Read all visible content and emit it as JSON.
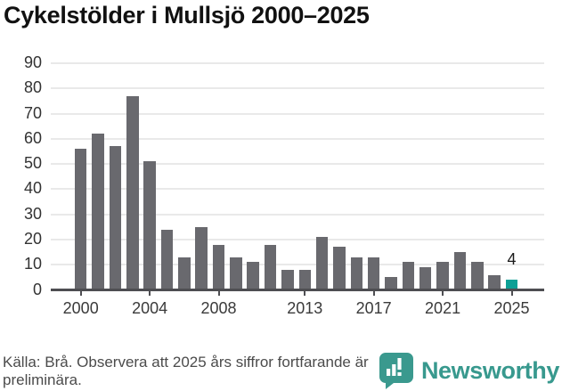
{
  "title": "Cykelstölder i Mullsjö 2000–2025",
  "chart_data": {
    "type": "bar",
    "categories": [
      2000,
      2001,
      2002,
      2003,
      2004,
      2005,
      2006,
      2007,
      2008,
      2009,
      2010,
      2011,
      2012,
      2013,
      2014,
      2015,
      2016,
      2017,
      2018,
      2019,
      2020,
      2021,
      2022,
      2023,
      2024,
      2025
    ],
    "values": [
      56,
      62,
      57,
      77,
      51,
      24,
      13,
      25,
      18,
      13,
      11,
      18,
      8,
      8,
      21,
      17,
      13,
      13,
      5,
      11,
      9,
      11,
      15,
      11,
      6,
      4
    ],
    "title": "Cykelstölder i Mullsjö 2000–2025",
    "xlabel": "",
    "ylabel": "",
    "ylim": [
      0,
      90
    ],
    "y_ticks": [
      0,
      10,
      20,
      30,
      40,
      50,
      60,
      70,
      80,
      90
    ],
    "x_tick_years": [
      2000,
      2004,
      2008,
      2013,
      2017,
      2021,
      2025
    ],
    "x_tick_labels": [
      "2000",
      "2004",
      "2008",
      "2013",
      "2017",
      "2021",
      "2025"
    ],
    "grid": true,
    "legend": "none",
    "bar_color": "#69696e",
    "highlight_year": 2025,
    "highlight_color": "#0da096",
    "highlight_value_label": "4"
  },
  "footer": {
    "source_text": "Källa: Brå. Observera att 2025 års siffror fortfarande är preliminära."
  },
  "branding": {
    "logo_text": "Newsworthy",
    "logo_color": "#38998e",
    "logo_icon": "bar-chart-bubble-icon"
  }
}
